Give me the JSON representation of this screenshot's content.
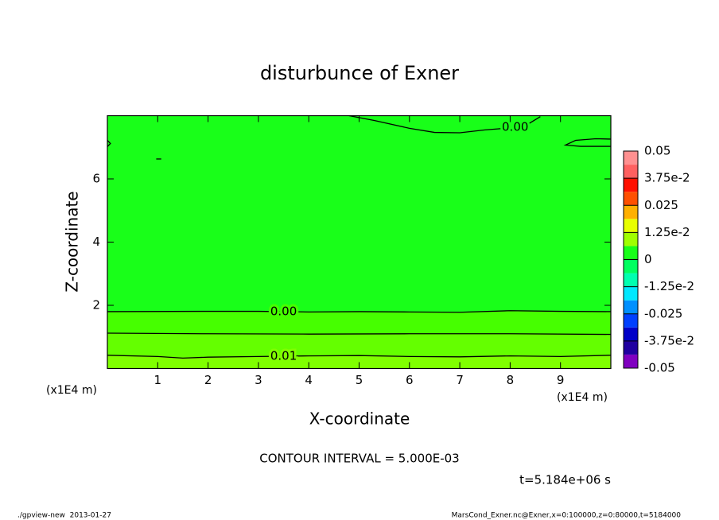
{
  "chart_data": {
    "type": "contour",
    "title": "disturbunce of Exner",
    "xlabel": "X-coordinate",
    "ylabel": "Z-coordinate",
    "x_unit_labels": [
      "(x1E4 m)",
      "(x1E4 m)"
    ],
    "xlim": [
      0,
      10
    ],
    "ylim": [
      0,
      8
    ],
    "xticks": [
      1,
      2,
      3,
      4,
      5,
      6,
      7,
      8,
      9
    ],
    "yticks": [
      2,
      4,
      6
    ],
    "field_color": "#19ff19",
    "contours": [
      {
        "label": "0.01",
        "fill": "#80ff00",
        "x": [
          0,
          1,
          1.5,
          2,
          3,
          4,
          5,
          6,
          7,
          8,
          9,
          10
        ],
        "y": [
          0.42,
          0.38,
          0.33,
          0.36,
          0.38,
          0.4,
          0.41,
          0.38,
          0.37,
          0.4,
          0.38,
          0.42
        ]
      },
      {
        "fill": "#64ff00",
        "x": [
          0,
          2,
          4,
          6,
          8,
          10
        ],
        "y": [
          1.12,
          1.1,
          1.09,
          1.1,
          1.1,
          1.08
        ]
      },
      {
        "label": "0.00",
        "fill": "#46ff00",
        "x": [
          0,
          2,
          3,
          4,
          5,
          6,
          7,
          8,
          9,
          10
        ],
        "y": [
          1.8,
          1.81,
          1.81,
          1.79,
          1.8,
          1.79,
          1.78,
          1.83,
          1.81,
          1.8
        ]
      },
      {
        "label": "0.00",
        "x": [
          4.8,
          5.3,
          6,
          6.5,
          7,
          7.5,
          7.9,
          8.3,
          8.6
        ],
        "y": [
          8,
          7.85,
          7.6,
          7.47,
          7.46,
          7.55,
          7.6,
          7.68,
          7.97
        ]
      },
      {
        "x": [
          10,
          9.4,
          9.1,
          9.3,
          9.7,
          10
        ],
        "y": [
          7.03,
          7.03,
          7.07,
          7.22,
          7.27,
          7.26
        ]
      },
      {
        "x": [
          0,
          0.06,
          0
        ],
        "y": [
          7.22,
          7.12,
          7.02
        ]
      },
      {
        "x": [
          0.97,
          1.07
        ],
        "y": [
          6.63,
          6.63
        ]
      }
    ],
    "colorbar": {
      "lim": [
        -0.05,
        0.05
      ],
      "levels": [
        -0.05,
        -0.04375,
        -0.0375,
        -0.03125,
        -0.025,
        -0.01875,
        -0.0125,
        -0.00625,
        0,
        0.00625,
        0.0125,
        0.01875,
        0.025,
        0.03125,
        0.0375,
        0.04375,
        0.05
      ],
      "colors": [
        "#8000c0",
        "#2000a0",
        "#0000c8",
        "#0040ff",
        "#0090ff",
        "#00e8ff",
        "#00ffb0",
        "#00ff60",
        "#19ff19",
        "#a0ff00",
        "#e8ff00",
        "#ffb000",
        "#ff5000",
        "#ff1000",
        "#ff6060",
        "#ff9090"
      ],
      "ticks": [
        0.05,
        {
          "value": 0.0375,
          "label": "3.75e-2"
        },
        0.025,
        {
          "value": 0.0125,
          "label": "1.25e-2"
        },
        0,
        {
          "value": -0.0125,
          "label": "-1.25e-2"
        },
        -0.025,
        {
          "value": -0.0375,
          "label": "-3.75e-2"
        },
        -0.05
      ]
    },
    "contour_interval": "CONTOUR INTERVAL = 5.000E-03",
    "time_label": "t=5.184e+06 s",
    "footer_left": "./gpview-new  2013-01-27",
    "footer_right": "MarsCond_Exner.nc@Exner,x=0:100000,z=0:80000,t=5184000"
  }
}
